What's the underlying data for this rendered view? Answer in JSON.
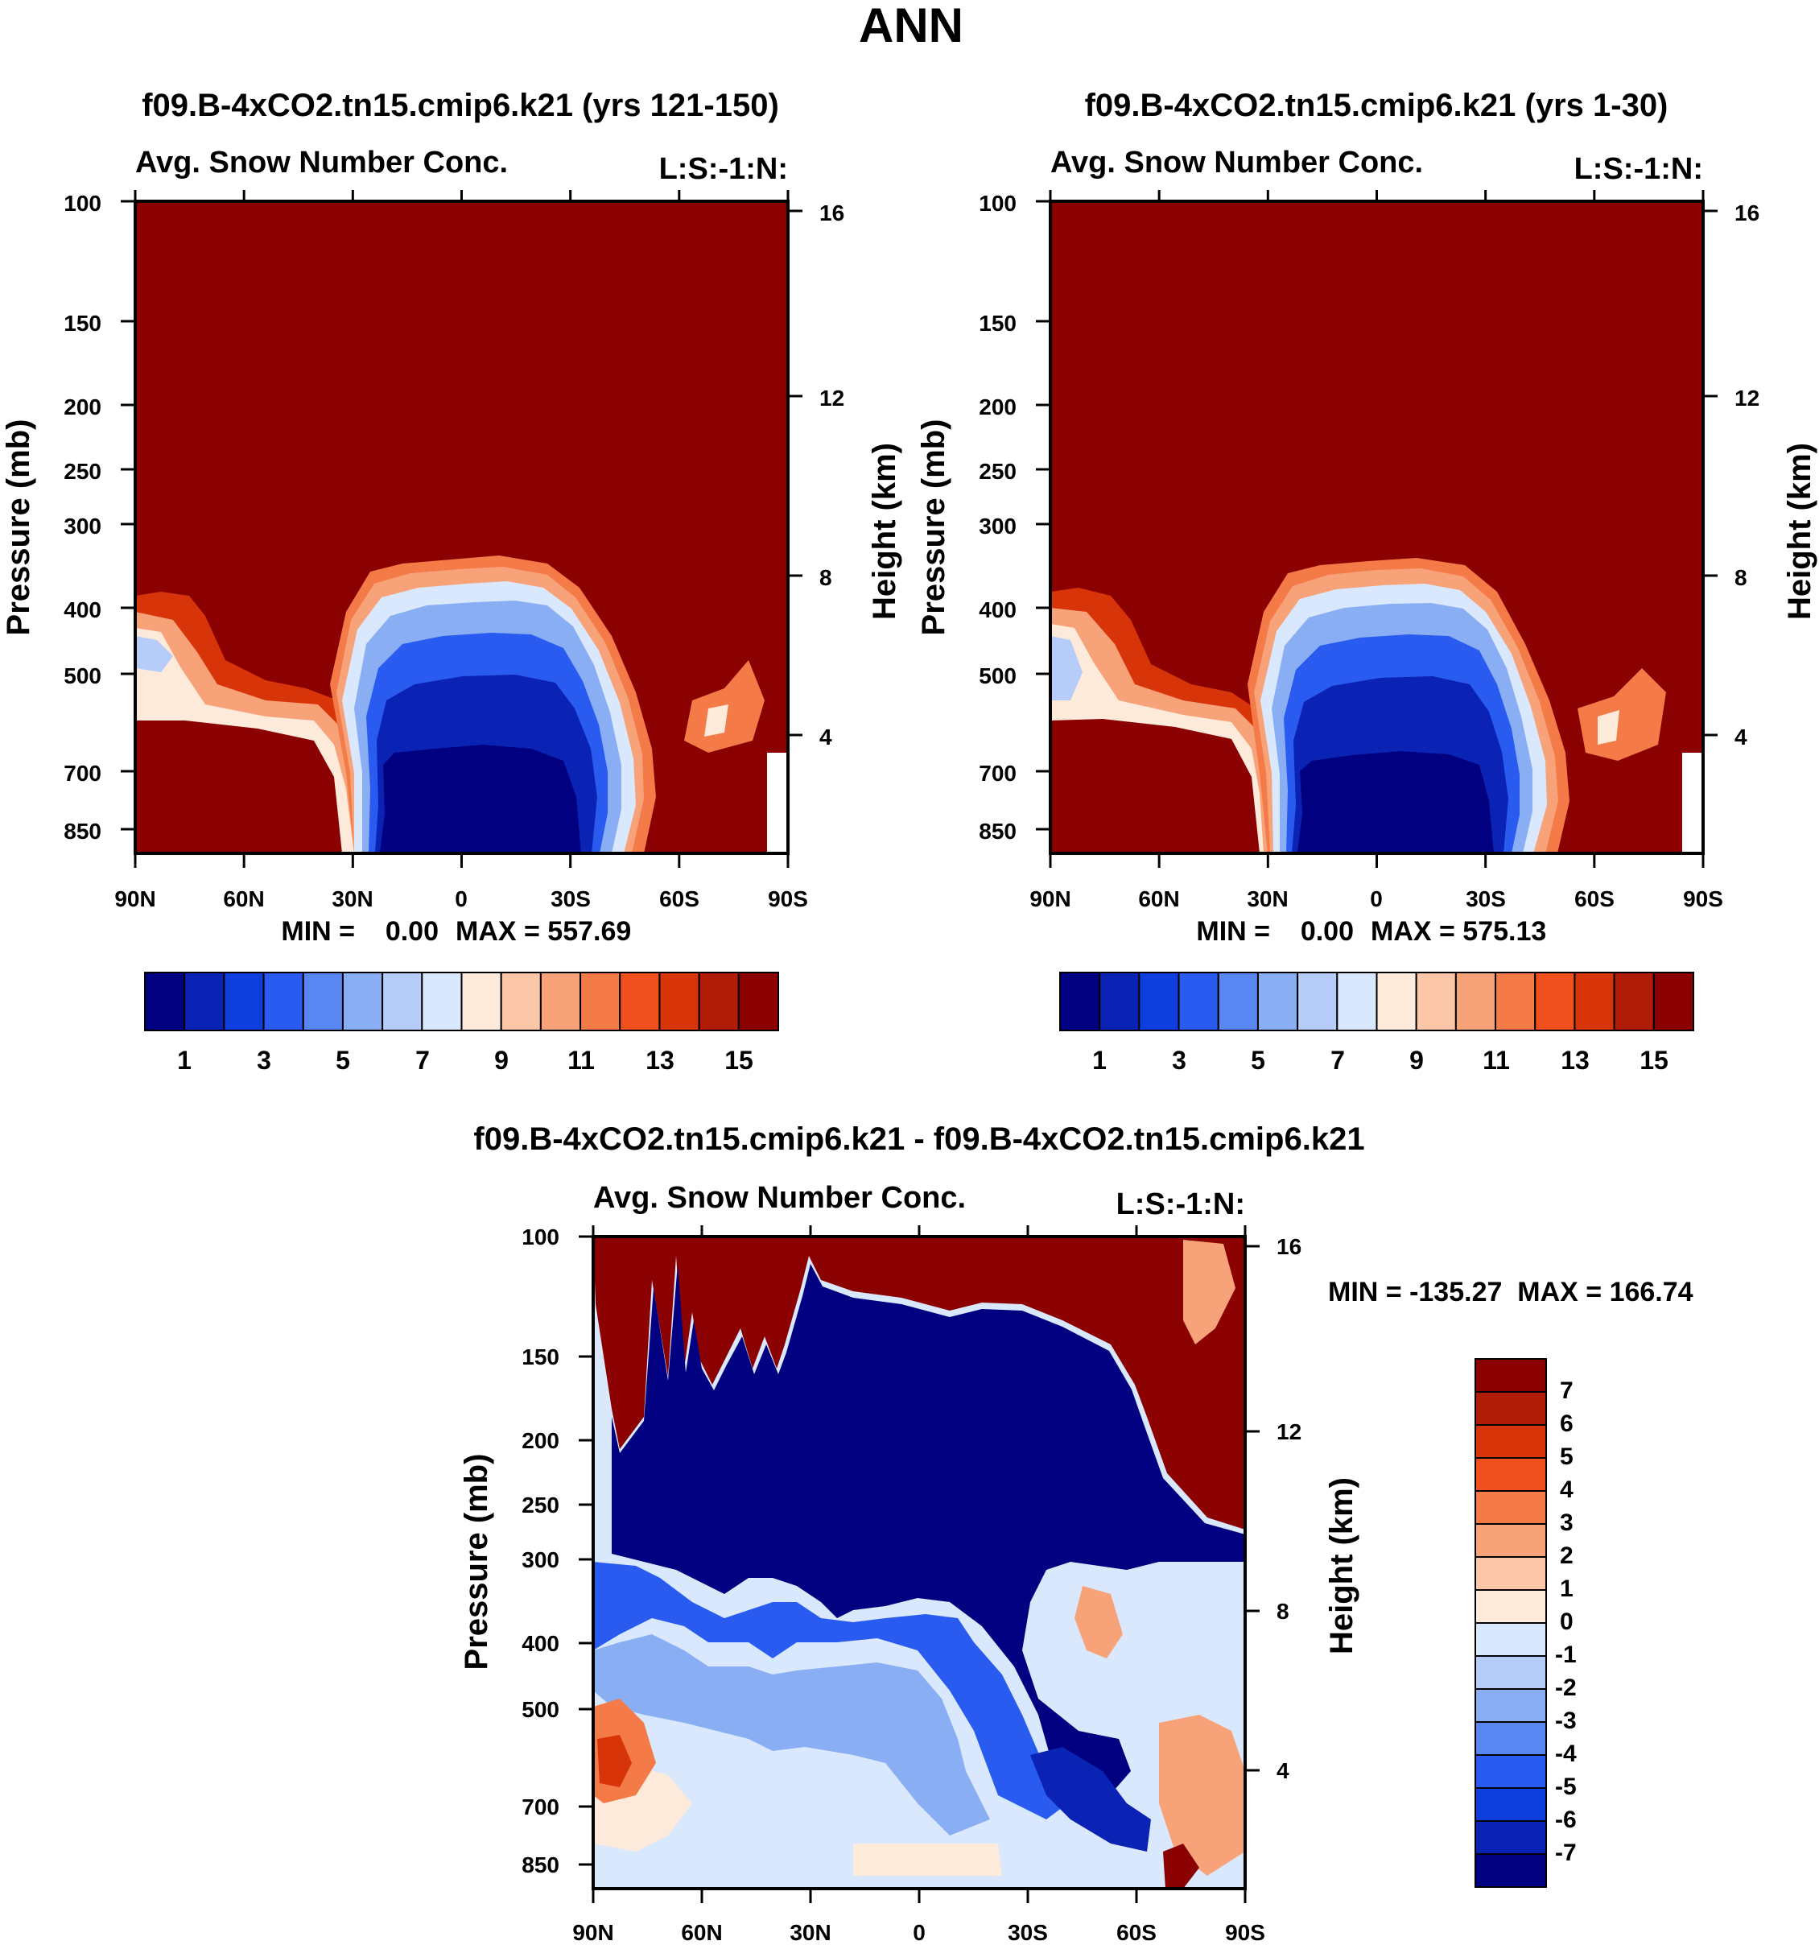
{
  "figure_title": "ANN",
  "chart_data": [
    {
      "type": "heatmap",
      "id": "case",
      "title": "f09.B-4xCO2.tn15.cmip6.k21 (yrs 121-150)",
      "subtitle": "Avg. Snow Number Conc.",
      "corner_label": "L:S:-1:N:",
      "ylabel": "Pressure (mb)",
      "ylabel_right": "Height (km)",
      "x_ticks": [
        "90N",
        "60N",
        "30N",
        "0",
        "30S",
        "60S",
        "90S"
      ],
      "y_ticks": [
        "100",
        "150",
        "200",
        "250",
        "300",
        "400",
        "500",
        "700",
        "850"
      ],
      "y_ticks_right": [
        "16",
        "12",
        "8",
        "4"
      ],
      "min_label": "MIN =    0.00",
      "max_label": "MAX = 557.69",
      "colorbar_orientation": "horizontal",
      "colorbar_labels": [
        "1",
        "3",
        "5",
        "7",
        "9",
        "11",
        "13",
        "15"
      ],
      "colors": [
        "#000080",
        "#0a23b4",
        "#0f3ede",
        "#2a5bf0",
        "#5a86f2",
        "#8aaef4",
        "#b5cdf8",
        "#d9e8fc",
        "#fdeadb",
        "#fcc6a8",
        "#f8a27a",
        "#f47a48",
        "#f0501e",
        "#d8340a",
        "#b01c08",
        "#8b0000"
      ]
    },
    {
      "type": "heatmap",
      "id": "control",
      "title": "f09.B-4xCO2.tn15.cmip6.k21 (yrs 1-30)",
      "subtitle": "Avg. Snow Number Conc.",
      "corner_label": "L:S:-1:N:",
      "ylabel": "Pressure (mb)",
      "ylabel_right": "Height (km)",
      "x_ticks": [
        "90N",
        "60N",
        "30N",
        "0",
        "30S",
        "60S",
        "90S"
      ],
      "y_ticks": [
        "100",
        "150",
        "200",
        "250",
        "300",
        "400",
        "500",
        "700",
        "850"
      ],
      "y_ticks_right": [
        "16",
        "12",
        "8",
        "4"
      ],
      "min_label": "MIN =    0.00",
      "max_label": "MAX = 575.13",
      "colorbar_orientation": "horizontal",
      "colorbar_labels": [
        "1",
        "3",
        "5",
        "7",
        "9",
        "11",
        "13",
        "15"
      ],
      "colors": [
        "#000080",
        "#0a23b4",
        "#0f3ede",
        "#2a5bf0",
        "#5a86f2",
        "#8aaef4",
        "#b5cdf8",
        "#d9e8fc",
        "#fdeadb",
        "#fcc6a8",
        "#f8a27a",
        "#f47a48",
        "#f0501e",
        "#d8340a",
        "#b01c08",
        "#8b0000"
      ]
    },
    {
      "type": "heatmap",
      "id": "difference",
      "title": "f09.B-4xCO2.tn15.cmip6.k21 - f09.B-4xCO2.tn15.cmip6.k21",
      "subtitle": "Avg. Snow Number Conc.",
      "corner_label": "L:S:-1:N:",
      "ylabel": "Pressure (mb)",
      "ylabel_right": "Height (km)",
      "x_ticks": [
        "90N",
        "60N",
        "30N",
        "0",
        "30S",
        "60S",
        "90S"
      ],
      "y_ticks": [
        "100",
        "150",
        "200",
        "250",
        "300",
        "400",
        "500",
        "700",
        "850"
      ],
      "y_ticks_right": [
        "16",
        "12",
        "8",
        "4"
      ],
      "minmax_label": "MIN = -135.27  MAX = 166.74",
      "colorbar_orientation": "vertical",
      "colorbar_labels": [
        "7",
        "6",
        "5",
        "4",
        "3",
        "2",
        "1",
        "0",
        "-1",
        "-2",
        "-3",
        "-4",
        "-5",
        "-6",
        "-7"
      ],
      "colors": [
        "#8b0000",
        "#b01c08",
        "#d8340a",
        "#f0501e",
        "#f47a48",
        "#f8a27a",
        "#fcc6a8",
        "#fdeadb",
        "#d9e8fc",
        "#b5cdf8",
        "#8aaef4",
        "#5a86f2",
        "#2a5bf0",
        "#0f3ede",
        "#0a23b4",
        "#000080"
      ]
    }
  ]
}
